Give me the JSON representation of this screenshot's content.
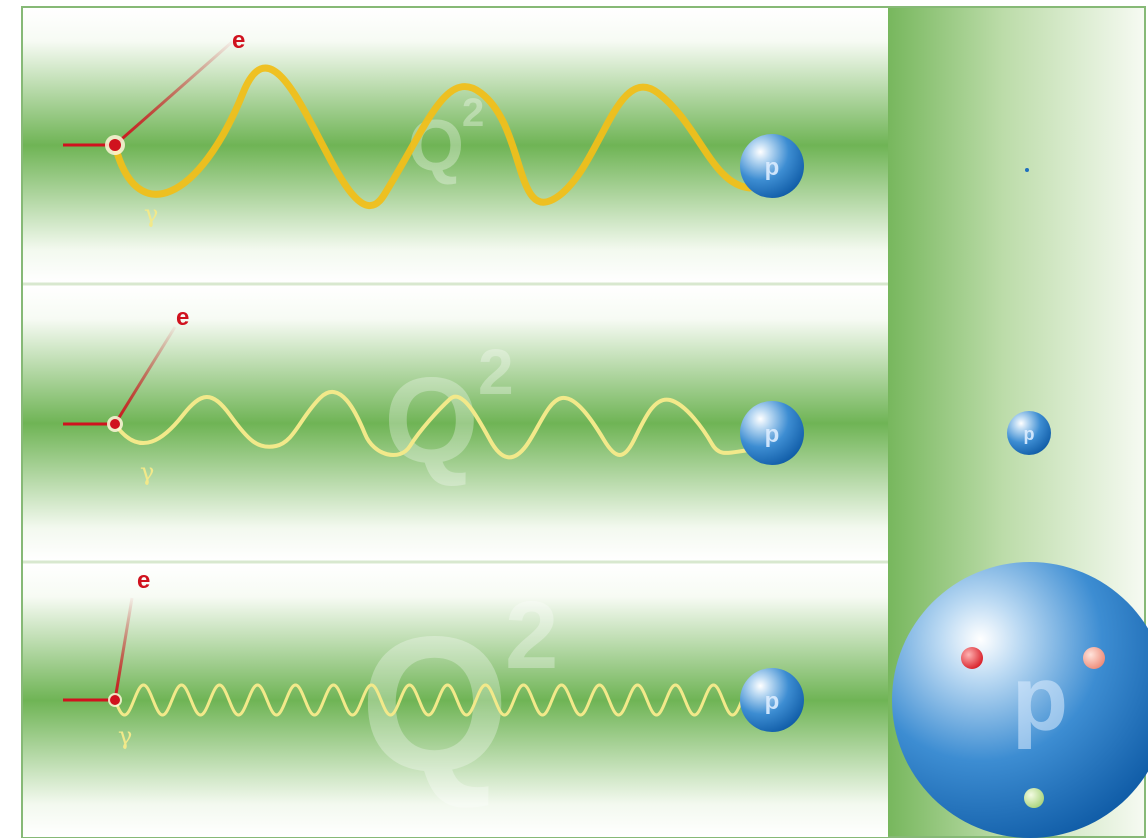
{
  "labels": {
    "electron": "e",
    "photon": "γ",
    "proton": "p",
    "q_main": "Q",
    "q_exp": "2"
  },
  "colors": {
    "electron": "#d0121e",
    "photon_strong": "#f0bf1a",
    "photon_weak": "#f2e98a",
    "proton": "#1e6fbe",
    "proton_highlight": "#bcdaf3",
    "background_green": "#6fb455",
    "frame": "#7cb069",
    "quark_red": "#e22a30",
    "quark_pink": "#f4a596",
    "quark_green": "#c6e3a0"
  },
  "panels": [
    {
      "name": "low-q2",
      "q2_strength": "low",
      "photon_wavelength": "long"
    },
    {
      "name": "medium-q2",
      "q2_strength": "medium",
      "photon_wavelength": "medium"
    },
    {
      "name": "high-q2",
      "q2_strength": "high",
      "photon_wavelength": "short"
    }
  ],
  "side_panel": {
    "items": [
      "tiny proton",
      "small proton",
      "large proton with three quarks"
    ]
  }
}
